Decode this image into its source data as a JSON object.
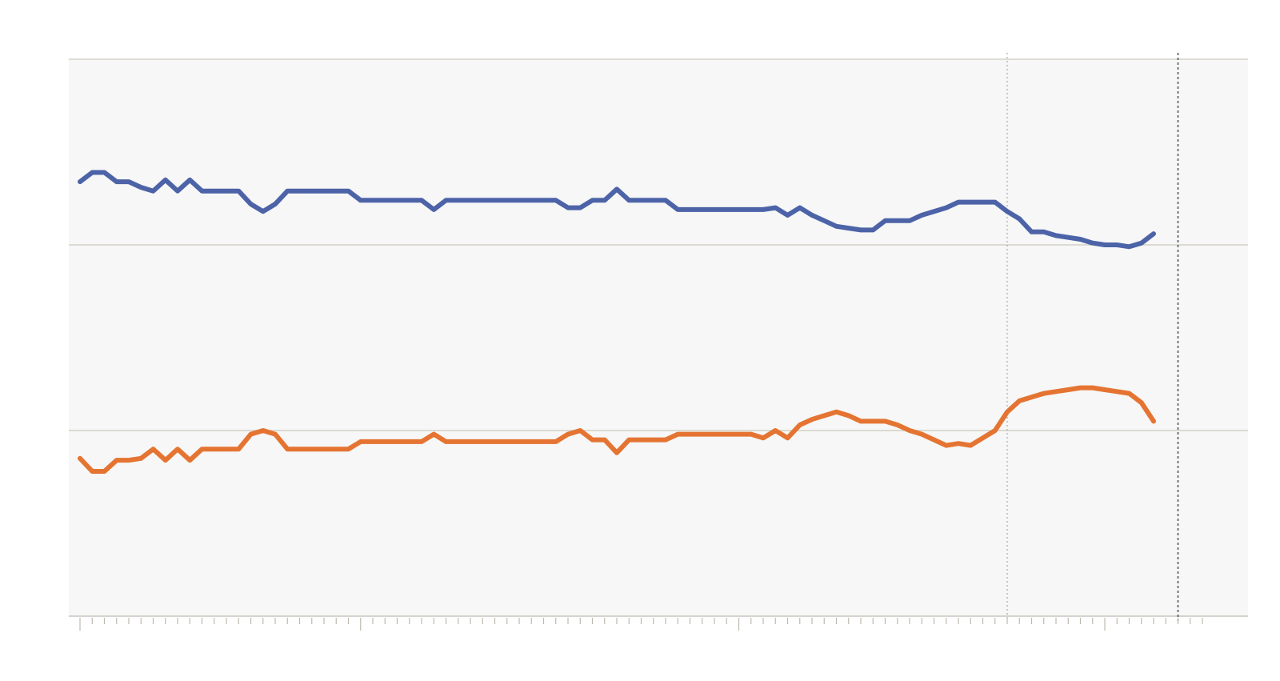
{
  "chart_data": {
    "type": "line",
    "title": "",
    "xlabel": "",
    "ylabel": "",
    "ylim": [
      0,
      3
    ],
    "grid": true,
    "legend": "none",
    "colors": {
      "plot_background": "#f6f7f6",
      "gridline": "#cdc9bd",
      "axis": "#bdbab0",
      "marker_line": "#555555",
      "series_a": "#4d63a8",
      "series_b": "#e57432"
    },
    "x_ticks": {
      "count": 93,
      "major_every": 1,
      "major_at": [
        0,
        23,
        54,
        84
      ]
    },
    "vertical_markers": [
      {
        "x": 76,
        "style": "dashed-light"
      },
      {
        "x": 90,
        "style": "dashed-dark"
      }
    ],
    "series": [
      {
        "color": "#4d63a8",
        "x": [
          0,
          1,
          2,
          3,
          4,
          5,
          6,
          7,
          8,
          9,
          10,
          11,
          12,
          13,
          14,
          15,
          16,
          17,
          18,
          19,
          20,
          21,
          22,
          23,
          24,
          25,
          26,
          27,
          28,
          29,
          30,
          31,
          32,
          33,
          34,
          35,
          36,
          37,
          38,
          39,
          40,
          41,
          42,
          43,
          44,
          45,
          46,
          47,
          48,
          49,
          50,
          51,
          52,
          53,
          54,
          55,
          56,
          57,
          58,
          59,
          60,
          61,
          62,
          63,
          64,
          65,
          66,
          67,
          68,
          69,
          70,
          71,
          72,
          73,
          74,
          75,
          76,
          77,
          78,
          79,
          80,
          81,
          82,
          83,
          84,
          85,
          86,
          87,
          88
        ],
        "y": [
          2.34,
          2.39,
          2.39,
          2.34,
          2.34,
          2.31,
          2.29,
          2.35,
          2.29,
          2.35,
          2.29,
          2.29,
          2.29,
          2.29,
          2.22,
          2.18,
          2.22,
          2.29,
          2.29,
          2.29,
          2.29,
          2.29,
          2.29,
          2.24,
          2.24,
          2.24,
          2.24,
          2.24,
          2.24,
          2.19,
          2.24,
          2.24,
          2.24,
          2.24,
          2.24,
          2.24,
          2.24,
          2.24,
          2.24,
          2.24,
          2.2,
          2.2,
          2.24,
          2.24,
          2.3,
          2.24,
          2.24,
          2.24,
          2.24,
          2.19,
          2.19,
          2.19,
          2.19,
          2.19,
          2.19,
          2.19,
          2.19,
          2.2,
          2.16,
          2.2,
          2.16,
          2.13,
          2.1,
          2.09,
          2.08,
          2.08,
          2.13,
          2.13,
          2.13,
          2.16,
          2.18,
          2.2,
          2.23,
          2.23,
          2.23,
          2.23,
          2.18,
          2.14,
          2.07,
          2.07,
          2.05,
          2.04,
          2.03,
          2.01,
          2.0,
          2.0,
          1.99,
          2.01,
          2.06
        ]
      },
      {
        "color": "#e57432",
        "x": [
          0,
          1,
          2,
          3,
          4,
          5,
          6,
          7,
          8,
          9,
          10,
          11,
          12,
          13,
          14,
          15,
          16,
          17,
          18,
          19,
          20,
          21,
          22,
          23,
          24,
          25,
          26,
          27,
          28,
          29,
          30,
          31,
          32,
          33,
          34,
          35,
          36,
          37,
          38,
          39,
          40,
          41,
          42,
          43,
          44,
          45,
          46,
          47,
          48,
          49,
          50,
          51,
          52,
          53,
          54,
          55,
          56,
          57,
          58,
          59,
          60,
          61,
          62,
          63,
          64,
          65,
          66,
          67,
          68,
          69,
          70,
          71,
          72,
          73,
          74,
          75,
          76,
          77,
          78,
          79,
          80,
          81,
          82,
          83,
          84,
          85,
          86,
          87,
          88
        ],
        "y": [
          0.85,
          0.78,
          0.78,
          0.84,
          0.84,
          0.85,
          0.9,
          0.84,
          0.9,
          0.84,
          0.9,
          0.9,
          0.9,
          0.9,
          0.98,
          1.0,
          0.98,
          0.9,
          0.9,
          0.9,
          0.9,
          0.9,
          0.9,
          0.94,
          0.94,
          0.94,
          0.94,
          0.94,
          0.94,
          0.98,
          0.94,
          0.94,
          0.94,
          0.94,
          0.94,
          0.94,
          0.94,
          0.94,
          0.94,
          0.94,
          0.98,
          1.0,
          0.95,
          0.95,
          0.88,
          0.95,
          0.95,
          0.95,
          0.95,
          0.98,
          0.98,
          0.98,
          0.98,
          0.98,
          0.98,
          0.98,
          0.96,
          1.0,
          0.96,
          1.03,
          1.06,
          1.08,
          1.1,
          1.08,
          1.05,
          1.05,
          1.05,
          1.03,
          1.0,
          0.98,
          0.95,
          0.92,
          0.93,
          0.92,
          0.96,
          1.0,
          1.1,
          1.16,
          1.18,
          1.2,
          1.21,
          1.22,
          1.23,
          1.23,
          1.22,
          1.21,
          1.2,
          1.15,
          1.05
        ]
      }
    ]
  }
}
